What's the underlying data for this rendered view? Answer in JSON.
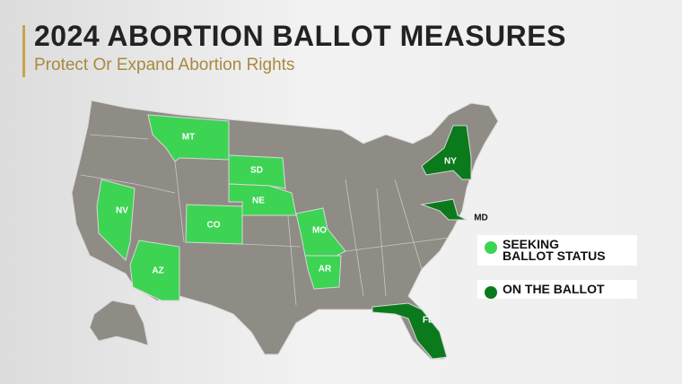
{
  "header": {
    "title": "2024 ABORTION BALLOT MEASURES",
    "subtitle": "Protect Or Expand Abortion Rights"
  },
  "legend": [
    {
      "label": "SEEKING BALLOT STATUS",
      "color": "#3dd353"
    },
    {
      "label": "ON THE BALLOT",
      "color": "#0b7a1c"
    }
  ],
  "states": [
    {
      "label": "MT",
      "status": 0
    },
    {
      "label": "SD",
      "status": 0
    },
    {
      "label": "NE",
      "status": 0
    },
    {
      "label": "NV",
      "status": 0
    },
    {
      "label": "CO",
      "status": 0
    },
    {
      "label": "AZ",
      "status": 0
    },
    {
      "label": "MO",
      "status": 0
    },
    {
      "label": "AR",
      "status": 0
    },
    {
      "label": "NY",
      "status": 1
    },
    {
      "label": "MD",
      "status": 1
    },
    {
      "label": "FL",
      "status": 1
    }
  ]
}
